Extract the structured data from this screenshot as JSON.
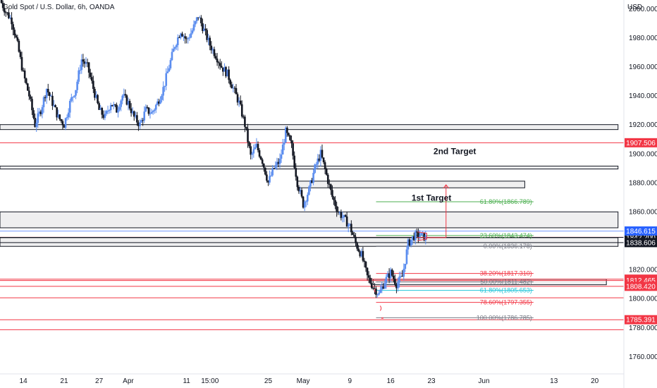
{
  "title": "Gold Spot / U.S. Dollar, 6h, OANDA",
  "price_axis_label": "USD",
  "colors": {
    "bull": "#5b8def",
    "bear": "#131722",
    "red": "#f23645",
    "green": "#4caf50",
    "teal": "#26c6da",
    "blue": "#2962ff",
    "gray": "#787b86"
  },
  "chart_data": {
    "type": "candlestick",
    "title": "Gold Spot / U.S. Dollar, 6h, OANDA",
    "ylabel": "USD",
    "ylim": [
      1748,
      2006
    ],
    "yticks": [
      2000,
      1980,
      1960,
      1940,
      1920,
      1900,
      1880,
      1860,
      1820,
      1800,
      1780,
      1760
    ],
    "ytick_labels": [
      "2000.000",
      "1980.000",
      "1960.000",
      "1940.000",
      "1920.000",
      "1900.000",
      "1880.000",
      "1860.000",
      "1820.000",
      "1800.000",
      "1780.000",
      "1760.000"
    ],
    "xticks": [
      {
        "label": "14",
        "x": 14
      },
      {
        "label": "21",
        "x": 21
      },
      {
        "label": "27",
        "x": 27
      },
      {
        "label": "Apr",
        "x": 32
      },
      {
        "label": "11",
        "x": 42
      },
      {
        "label": "15:00",
        "x": 46
      },
      {
        "label": "25",
        "x": 56
      },
      {
        "label": "May",
        "x": 62
      },
      {
        "label": "9",
        "x": 70
      },
      {
        "label": "16",
        "x": 77
      },
      {
        "label": "23",
        "x": 84
      },
      {
        "label": "Jun",
        "x": 93
      },
      {
        "label": "13",
        "x": 105
      },
      {
        "label": "20",
        "x": 112
      }
    ],
    "xlim": [
      10,
      117
    ],
    "path": [
      [
        10,
        2006
      ],
      [
        11,
        1998
      ],
      [
        12,
        1992
      ],
      [
        13,
        1975
      ],
      [
        14,
        1955
      ],
      [
        15,
        1940
      ],
      [
        16,
        1920
      ],
      [
        17,
        1930
      ],
      [
        18,
        1945
      ],
      [
        19,
        1935
      ],
      [
        20,
        1925
      ],
      [
        21,
        1920
      ],
      [
        22,
        1935
      ],
      [
        23,
        1945
      ],
      [
        24,
        1965
      ],
      [
        25,
        1960
      ],
      [
        26,
        1945
      ],
      [
        27,
        1930
      ],
      [
        28,
        1925
      ],
      [
        29,
        1935
      ],
      [
        30,
        1930
      ],
      [
        31,
        1940
      ],
      [
        32,
        1935
      ],
      [
        33,
        1925
      ],
      [
        34,
        1920
      ],
      [
        35,
        1930
      ],
      [
        36,
        1928
      ],
      [
        37,
        1935
      ],
      [
        38,
        1945
      ],
      [
        39,
        1960
      ],
      [
        40,
        1975
      ],
      [
        41,
        1985
      ],
      [
        42,
        1978
      ],
      [
        43,
        1985
      ],
      [
        44,
        1995
      ],
      [
        45,
        1985
      ],
      [
        46,
        1975
      ],
      [
        47,
        1968
      ],
      [
        48,
        1960
      ],
      [
        49,
        1955
      ],
      [
        50,
        1945
      ],
      [
        51,
        1935
      ],
      [
        52,
        1920
      ],
      [
        53,
        1898
      ],
      [
        54,
        1905
      ],
      [
        55,
        1895
      ],
      [
        56,
        1880
      ],
      [
        57,
        1890
      ],
      [
        58,
        1895
      ],
      [
        59,
        1915
      ],
      [
        60,
        1905
      ],
      [
        61,
        1880
      ],
      [
        62,
        1865
      ],
      [
        63,
        1875
      ],
      [
        64,
        1890
      ],
      [
        65,
        1900
      ],
      [
        66,
        1885
      ],
      [
        67,
        1870
      ],
      [
        68,
        1860
      ],
      [
        69,
        1855
      ],
      [
        70,
        1850
      ],
      [
        71,
        1838
      ],
      [
        72,
        1830
      ],
      [
        73,
        1815
      ],
      [
        74,
        1808
      ],
      [
        75,
        1803
      ],
      [
        76,
        1812
      ],
      [
        77,
        1818
      ],
      [
        78,
        1810
      ],
      [
        79,
        1815
      ],
      [
        80,
        1838
      ],
      [
        81,
        1843
      ],
      [
        82,
        1844
      ],
      [
        83,
        1842
      ]
    ],
    "horizontal_lines": [
      {
        "price": 1907.506,
        "color": "red",
        "tag": "1907.506"
      },
      {
        "price": 1813.382,
        "color": "red",
        "tag": "1813.382"
      },
      {
        "price": 1812.465,
        "color": "red",
        "tag": "1812.465"
      },
      {
        "price": 1808.42,
        "color": "red",
        "tag": "1808.420"
      },
      {
        "price": 1785.391,
        "color": "red",
        "tag": "1785.391"
      },
      {
        "price": 1800.5,
        "color": "red",
        "tag": ""
      },
      {
        "price": 1778.5,
        "color": "red",
        "tag": ""
      },
      {
        "price": 1842.28,
        "color": "red",
        "tag": "1842.280"
      },
      {
        "price": 1842.2,
        "color": "dark",
        "tag": "1842.200"
      },
      {
        "price": 1838.606,
        "color": "black",
        "tag": "1838.606"
      },
      {
        "price": 1846.615,
        "color": "blue",
        "tag": "1846.615"
      }
    ],
    "zones": [
      {
        "top": 1920.0,
        "bottom": 1916.6,
        "x_start": 10,
        "x_end": 116
      },
      {
        "top": 1891.4,
        "bottom": 1889.4,
        "x_start": 10,
        "x_end": 116
      },
      {
        "top": 1859.8,
        "bottom": 1848.8,
        "x_start": 10,
        "x_end": 116
      },
      {
        "top": 1881.0,
        "bottom": 1876.4,
        "x_start": 61,
        "x_end": 100
      },
      {
        "top": 1842.0,
        "bottom": 1836.0,
        "x_start": 10,
        "x_end": 116
      },
      {
        "top": 1813.3,
        "bottom": 1809.5,
        "x_start": 74,
        "x_end": 114
      }
    ],
    "fibonacci": [
      {
        "ratio": "61.80%",
        "price": 1866.789,
        "label": "61.80%(1866.789)",
        "color": "green"
      },
      {
        "ratio": "23.60%",
        "price": 1843.474,
        "label": "23.60%(1843.474)",
        "color": "green"
      },
      {
        "ratio": "0.00%",
        "price": 1836.178,
        "label": "0.00%(1836.178)",
        "color": "gray"
      },
      {
        "ratio": "38.20%",
        "price": 1817.31,
        "label": "38.20%(1817.310)",
        "color": "red"
      },
      {
        "ratio": "50.00%",
        "price": 1811.482,
        "label": "50.00%(1811.482)",
        "color": "gray"
      },
      {
        "ratio": "61.80%",
        "price": 1805.653,
        "label": "61.80%(1805.653)",
        "color": "teal"
      },
      {
        "ratio": "78.60%",
        "price": 1797.355,
        "label": "78.60%(1797.355)",
        "color": "red"
      },
      {
        "ratio": "100.00%",
        "price": 1786.785,
        "label": "100.00%(1786.785)",
        "color": "gray"
      }
    ],
    "annotations": [
      {
        "text": "2nd Target",
        "x": 88,
        "price": 1901.5
      },
      {
        "text": "1st Target",
        "x": 84,
        "price": 1869.5
      }
    ],
    "grid": false,
    "legend": "none"
  }
}
